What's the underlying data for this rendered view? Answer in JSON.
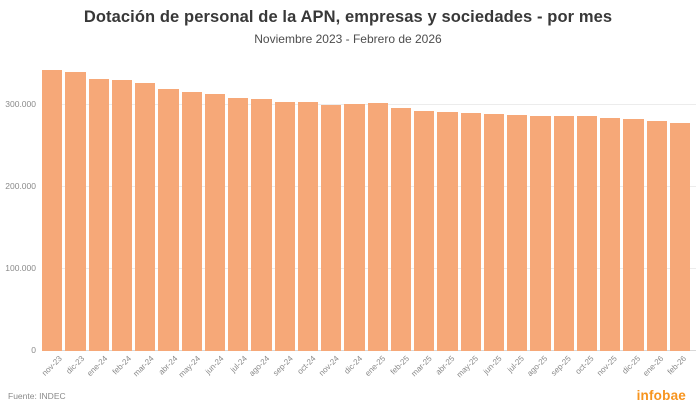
{
  "header": {
    "title": "Dotación de personal de la APN, empresas y sociedades - por mes",
    "subtitle": "Noviembre 2023 - Febrero de 2026"
  },
  "footer": {
    "source": "Fuente: INDEC",
    "brand": "infobae"
  },
  "chart_data": {
    "type": "bar",
    "title": "Dotación de personal de la APN, empresas y sociedades - por mes",
    "subtitle": "Noviembre 2023 - Febrero de 2026",
    "xlabel": "",
    "ylabel": "",
    "categories": [
      "nov-23",
      "dic-23",
      "ene-24",
      "feb-24",
      "mar-24",
      "abr-24",
      "may-24",
      "jun-24",
      "jul-24",
      "ago-24",
      "sep-24",
      "oct-24",
      "nov-24",
      "dic-24",
      "ene-25",
      "feb-25",
      "mar-25",
      "abr-25",
      "may-25",
      "jun-25",
      "jul-25",
      "ago-25",
      "sep-25",
      "oct-25",
      "nov-25",
      "dic-25",
      "ene-26",
      "feb-26"
    ],
    "values": [
      343000,
      340500,
      331800,
      330500,
      327000,
      319600,
      315600,
      313000,
      309000,
      307300,
      303600,
      303300,
      300400,
      301800,
      302300,
      296800,
      293000,
      291200,
      289800,
      289000,
      288200,
      287200,
      286800,
      286000,
      284600,
      283000,
      280400,
      278600
    ],
    "yticks": [
      0,
      100000,
      200000,
      300000
    ],
    "ytick_labels": [
      "0",
      "100.000",
      "200.000",
      "300.000"
    ],
    "ylim": [
      0,
      352400
    ],
    "grid": "horizontal",
    "legend": false,
    "bar_color": "#F6A878",
    "brand_color": "#F7941E"
  }
}
